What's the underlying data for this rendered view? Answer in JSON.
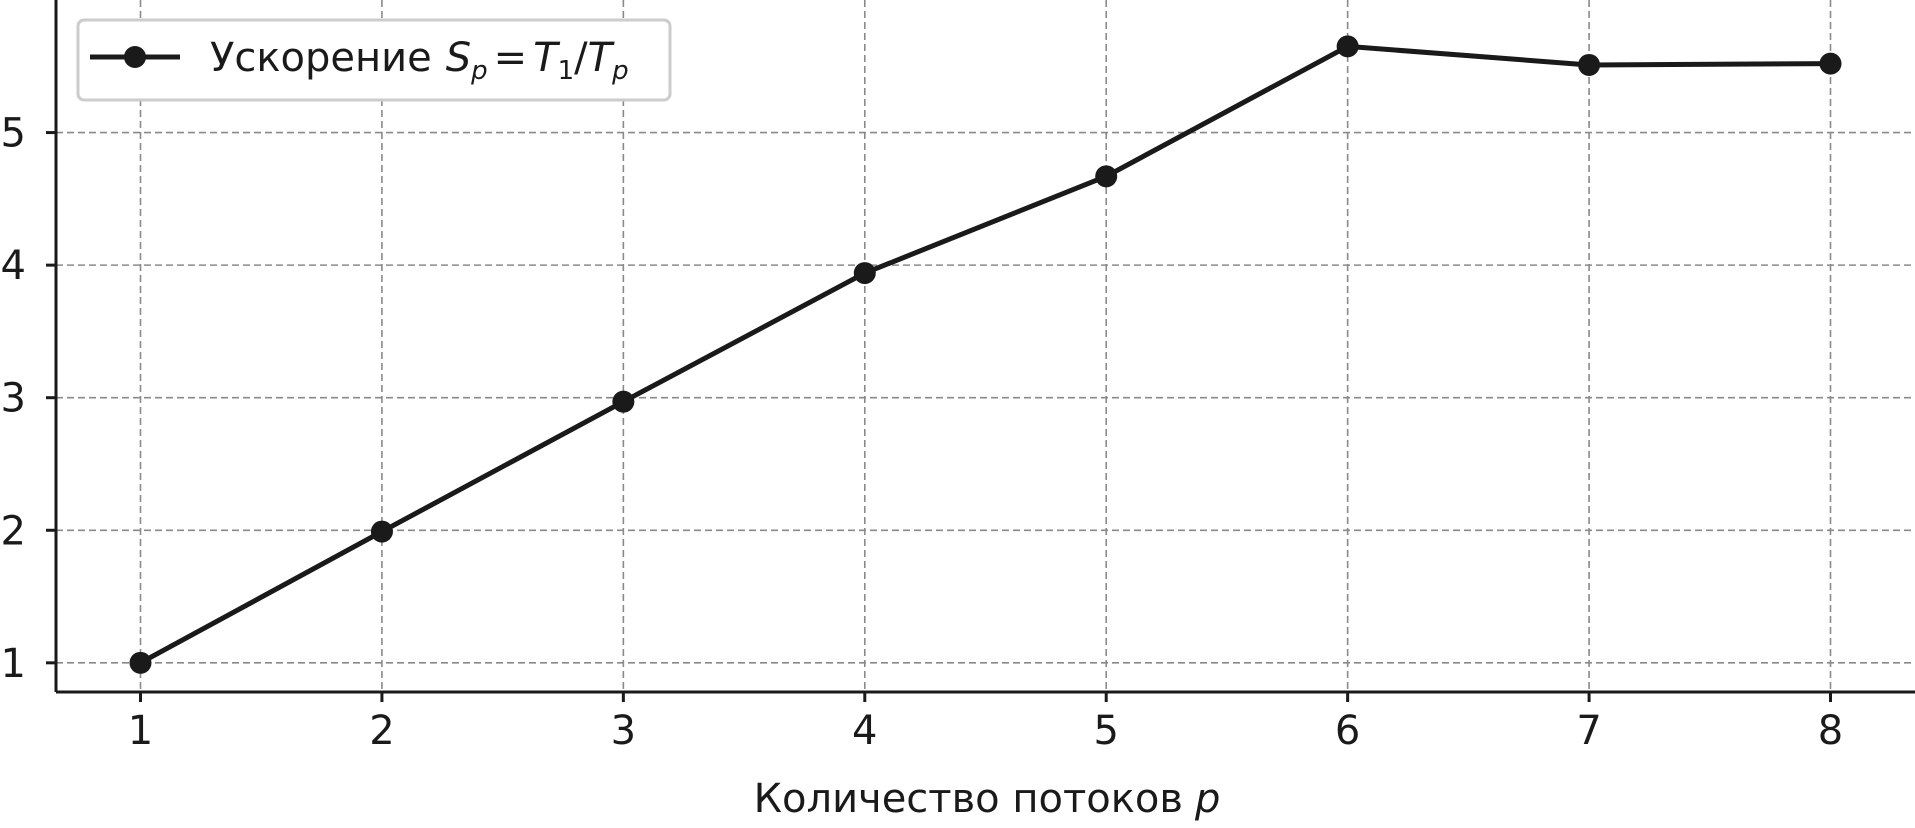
{
  "chart_data": {
    "type": "line",
    "title": "",
    "xlabel": "Количество потоков",
    "xlabel_var": "p",
    "ylabel": "",
    "x": [
      1,
      2,
      3,
      4,
      5,
      6,
      7,
      8
    ],
    "xlim": [
      0.65,
      8.35
    ],
    "ylim": [
      0.78,
      6.0
    ],
    "x_ticks": [
      1,
      2,
      3,
      4,
      5,
      6,
      7,
      8
    ],
    "y_ticks": [
      1,
      2,
      3,
      4,
      5
    ],
    "grid": true,
    "legend_position": "top-left",
    "series": [
      {
        "name": "Ускорение",
        "name_formula": "S_p = T_1/T_p",
        "color": "#1a1a1a",
        "marker": "circle",
        "values": [
          1.0,
          1.99,
          2.97,
          3.94,
          4.67,
          5.65,
          5.51,
          5.52
        ]
      }
    ]
  }
}
